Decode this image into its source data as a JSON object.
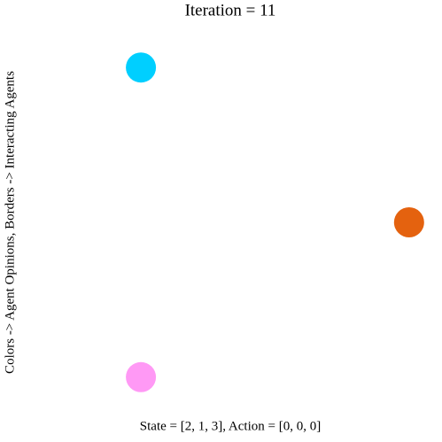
{
  "chart_data": {
    "type": "scatter",
    "title": "Iteration = 11",
    "xlabel": "State = [2, 1, 3], Action = [0, 0, 0]",
    "ylabel": "Colors -> Agent Opinions, Borders -> Interacting Agents",
    "x": [
      -0.5,
      1,
      -0.5
    ],
    "y": [
      0.866,
      0,
      -0.866
    ],
    "colors": [
      "#00cfff",
      "#e4620f",
      "#ff99f5"
    ],
    "xlim": [
      -1.1,
      1.1
    ],
    "ylim": [
      -1.1,
      1.1
    ]
  }
}
